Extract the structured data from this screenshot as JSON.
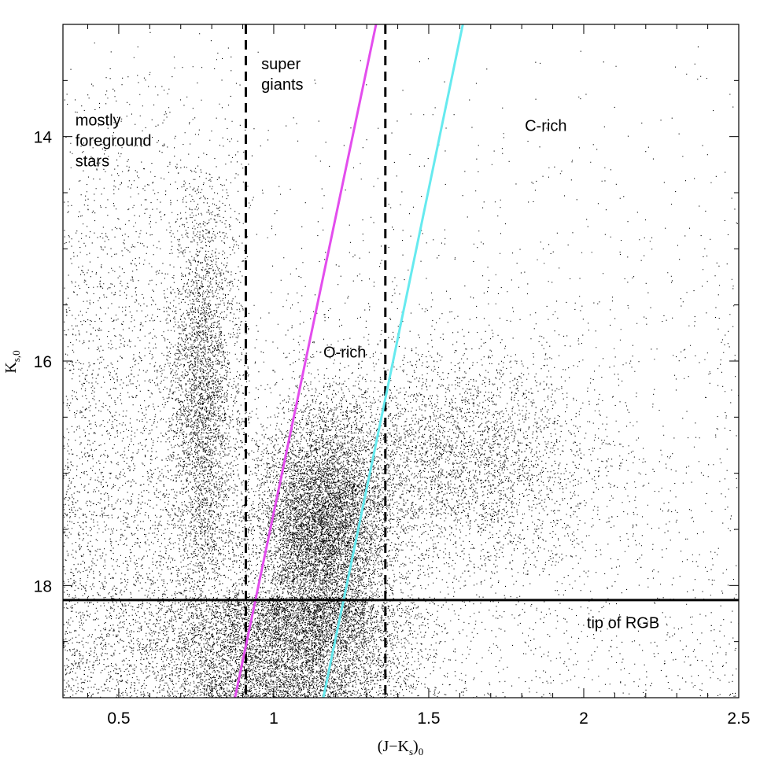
{
  "chart_data": {
    "type": "scatter",
    "title": "",
    "xlabel": {
      "main": "(J−K",
      "sub1": "s",
      "close": ")",
      "sub2": "0"
    },
    "ylabel": {
      "main": "K",
      "sub": "s,0"
    },
    "xlim": [
      0.32,
      2.5
    ],
    "ylim": [
      19.0,
      13.0
    ],
    "y_inverted": true,
    "x_ticks": [
      {
        "value": 0.5,
        "label": "0.5"
      },
      {
        "value": 1.0,
        "label": "1"
      },
      {
        "value": 1.5,
        "label": "1.5"
      },
      {
        "value": 2.0,
        "label": "2"
      },
      {
        "value": 2.5,
        "label": "2.5"
      }
    ],
    "y_ticks": [
      {
        "value": 14,
        "label": "14"
      },
      {
        "value": 16,
        "label": "16"
      },
      {
        "value": 18,
        "label": "18"
      }
    ],
    "grid": false,
    "point_color": "#000000",
    "point_clusters": [
      {
        "name": "foreground-sequence",
        "n": 3000,
        "x_center": 0.77,
        "x_sd": 0.05,
        "y_center": 16.3,
        "y_sd": 0.9,
        "y_range": [
          14.3,
          19.0
        ]
      },
      {
        "name": "foreground-diffuse",
        "n": 4200,
        "x_range": [
          0.32,
          0.92
        ],
        "y_range": [
          13.0,
          19.0
        ],
        "y_weight": "bottom"
      },
      {
        "name": "o-rich-clump",
        "n": 9000,
        "x_center": 1.16,
        "x_sd": 0.11,
        "y_center": 17.5,
        "y_sd": 0.55
      },
      {
        "name": "rgb-below-tip",
        "n": 6000,
        "x_center": 1.05,
        "x_sd": 0.2,
        "y_range": [
          18.1,
          19.0
        ]
      },
      {
        "name": "c-rich-plume",
        "n": 3500,
        "x_center": 1.6,
        "x_sd": 0.22,
        "y_center": 16.9,
        "y_sd": 0.5
      },
      {
        "name": "background",
        "n": 3200,
        "x_range": [
          0.32,
          2.5
        ],
        "y_range": [
          13.0,
          19.0
        ],
        "y_weight": "bottom"
      }
    ],
    "lines": [
      {
        "name": "supergiant-boundary-left",
        "style": "dashed",
        "color": "#000000",
        "points": [
          [
            0.91,
            13.0
          ],
          [
            0.91,
            19.0
          ]
        ]
      },
      {
        "name": "supergiant-boundary-right",
        "style": "dashed",
        "color": "#000000",
        "points": [
          [
            1.36,
            13.0
          ],
          [
            1.36,
            19.0
          ]
        ]
      },
      {
        "name": "o-rich-boundary",
        "style": "solid",
        "color": "#e34ded",
        "points": [
          [
            0.875,
            19.0
          ],
          [
            1.33,
            13.0
          ]
        ]
      },
      {
        "name": "c-rich-boundary",
        "style": "solid",
        "color": "#66eaef",
        "points": [
          [
            1.16,
            19.0
          ],
          [
            1.61,
            13.0
          ]
        ]
      },
      {
        "name": "tip-of-rgb",
        "style": "solid",
        "color": "#000000",
        "points": [
          [
            0.32,
            18.13
          ],
          [
            2.5,
            18.13
          ]
        ]
      }
    ],
    "annotations": [
      {
        "name": "label-foreground",
        "lines": [
          "mostly",
          "foreground",
          "stars"
        ],
        "x": 0.36,
        "y": 13.9
      },
      {
        "name": "label-supergiants",
        "lines": [
          "super",
          "giants"
        ],
        "x": 0.96,
        "y": 13.4
      },
      {
        "name": "label-o-rich",
        "lines": [
          "O-rich"
        ],
        "x": 1.16,
        "y": 15.97
      },
      {
        "name": "label-c-rich",
        "lines": [
          "C-rich"
        ],
        "x": 1.81,
        "y": 13.95
      },
      {
        "name": "label-tip-rgb",
        "lines": [
          "tip of RGB"
        ],
        "x": 2.01,
        "y": 18.38
      }
    ]
  }
}
